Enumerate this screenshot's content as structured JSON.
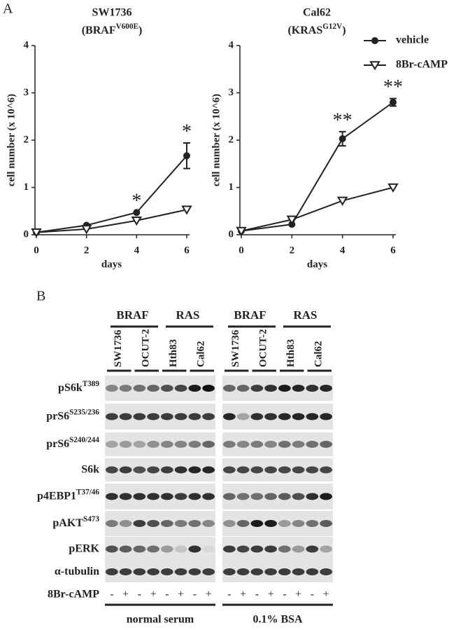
{
  "panel_labels": [
    "A",
    "B"
  ],
  "chart_data": [
    {
      "type": "line",
      "title": "SW1736",
      "subtitle": {
        "base": "(BRAF",
        "sup": "V600E",
        "close": ")"
      },
      "y_label": "cell number (x 10^6)",
      "x_label": "days",
      "x": [
        0,
        2,
        4,
        6
      ],
      "xlim": [
        0,
        6
      ],
      "xticks": [
        0,
        2,
        4,
        6
      ],
      "ylim": [
        0,
        4
      ],
      "yticks": [
        0,
        1,
        2,
        3,
        4
      ],
      "series": [
        {
          "marker": "circle",
          "color": "#222222",
          "values": [
            0.05,
            0.2,
            0.47,
            1.67
          ],
          "errors": [
            null,
            null,
            null,
            0.27
          ]
        },
        {
          "marker": "triangle-down-open",
          "color": "#222222",
          "values": [
            0.05,
            0.12,
            0.3,
            0.53
          ]
        }
      ],
      "annotations": [
        {
          "text": "*",
          "x": 4
        },
        {
          "text": "*",
          "x": 6
        }
      ]
    },
    {
      "type": "line",
      "title": "Cal62",
      "subtitle": {
        "base": "(KRAS",
        "sup": "G12V",
        "close": ")"
      },
      "y_label": "cell number (x 10^6)",
      "x_label": "days",
      "x": [
        0,
        2,
        4,
        6
      ],
      "xlim": [
        0,
        6
      ],
      "xticks": [
        0,
        2,
        4,
        6
      ],
      "ylim": [
        0,
        4
      ],
      "yticks": [
        0,
        1,
        2,
        3,
        4
      ],
      "legend": "upper right",
      "series": [
        {
          "name": "vehicle",
          "marker": "circle",
          "color": "#222222",
          "values": [
            0.08,
            0.22,
            2.03,
            2.8
          ],
          "errors": [
            null,
            null,
            0.15,
            0.08
          ]
        },
        {
          "name": "8Br-cAMP",
          "marker": "triangle-down-open",
          "color": "#222222",
          "values": [
            0.08,
            0.32,
            0.72,
            1.0
          ]
        }
      ],
      "annotations": [
        {
          "text": "**",
          "x": 4
        },
        {
          "text": "**",
          "x": 6
        }
      ]
    }
  ],
  "blot": {
    "groups": [
      {
        "label": "BRAF",
        "cell_lines": [
          "SW1736",
          "OCUT-2"
        ]
      },
      {
        "label": "RAS",
        "cell_lines": [
          "Hth83",
          "Cal62"
        ]
      }
    ],
    "rows": [
      {
        "name": "pS6k",
        "sup": "T389"
      },
      {
        "name": "prS6",
        "sup": "S235/236"
      },
      {
        "name": "prS6",
        "sup": "S240/244"
      },
      {
        "name": "S6k"
      },
      {
        "name": "p4EBP1",
        "sup": "T37/46"
      },
      {
        "name": "pAKT",
        "sup": "S473"
      },
      {
        "name": "pERK"
      },
      {
        "name": "α-tubulin"
      }
    ],
    "treatment": {
      "label": "8Br-cAMP",
      "signs": [
        "-",
        "+",
        "-",
        "+",
        "-",
        "+",
        "-",
        "+"
      ]
    },
    "conditions": [
      "normal serum",
      "0.1% BSA"
    ]
  }
}
